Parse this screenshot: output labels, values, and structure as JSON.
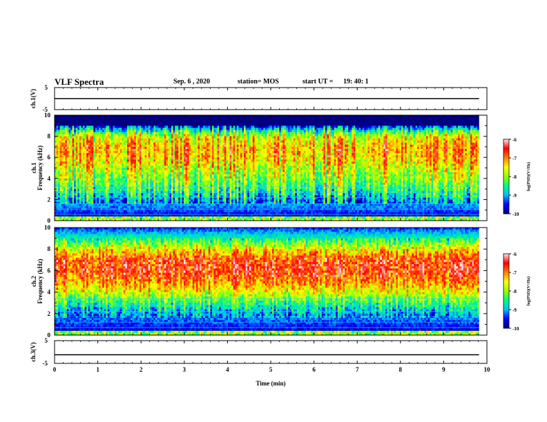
{
  "header": {
    "title": "VLF Spectra",
    "date": "Sep. 6 , 2020",
    "station": "station= MOS",
    "start_label": "start UT =",
    "start_time": "19: 40: 1"
  },
  "time_axis": {
    "label": "Time (min)",
    "range": [
      0,
      10
    ],
    "ticks": [
      "0",
      "1",
      "2",
      "3",
      "4",
      "5",
      "6",
      "7",
      "8",
      "9",
      "10"
    ]
  },
  "panels": {
    "ch1_voltage": {
      "ylabel": "ch.1(V)",
      "yrange": [
        -5,
        5
      ],
      "ytick_labels": [
        "5",
        "-5"
      ],
      "trace_level_V": 0
    },
    "ch1_spectrogram": {
      "ylabel_line1": "ch.1",
      "ylabel_line2": "Frequency (kHz)",
      "yrange": [
        0,
        10
      ],
      "ytick_labels": [
        "0",
        "2",
        "4",
        "6",
        "8",
        "10"
      ]
    },
    "ch2_spectrogram": {
      "ylabel_line1": "ch.2",
      "ylabel_line2": "Frequency (kHz)",
      "yrange": [
        0,
        10
      ],
      "ytick_labels": [
        "0",
        "2",
        "4",
        "6",
        "8",
        "10"
      ]
    },
    "ch3_voltage": {
      "ylabel": "ch.3(V)",
      "yrange": [
        -5,
        5
      ],
      "ytick_labels": [
        "5",
        "-5"
      ],
      "trace_level_V": -1.2
    }
  },
  "colorbars": [
    {
      "label": "log(PSD)(V²/Hz)",
      "range": [
        -10,
        -6
      ],
      "tick_labels": [
        "-6",
        "-7",
        "-8",
        "-9",
        "-10"
      ]
    },
    {
      "label": "log(PSD)(V²/Hz)",
      "range": [
        -10,
        -6
      ],
      "tick_labels": [
        "-6",
        "-7",
        "-8",
        "-9",
        "-10"
      ]
    }
  ],
  "colors": {
    "psd_colormap": [
      "#000080",
      "#0000ff",
      "#00bfff",
      "#00ff80",
      "#9aff00",
      "#ffff00",
      "#ff8000",
      "#ff0000",
      "#ffe6e6"
    ],
    "axis": "#000000"
  },
  "chart_data": [
    {
      "type": "line",
      "title": "",
      "xlabel": "",
      "ylabel": "ch.1(V)",
      "xlim": [
        0,
        10
      ],
      "ylim": [
        -5,
        5
      ],
      "series": [
        {
          "x": [
            0,
            9.82
          ],
          "y": [
            0,
            0
          ]
        }
      ]
    },
    {
      "type": "heatmap",
      "title": "",
      "ylabel": "Frequency (kHz)",
      "xlim": [
        0,
        10
      ],
      "ylim": [
        0,
        10
      ],
      "data_end_min": 9.82,
      "colorbar_range": [
        -10,
        -6
      ],
      "approx_freq_profile": {
        "freq_khz": [
          0,
          0.5,
          1,
          2,
          3,
          4,
          5,
          6,
          7,
          8,
          8.6,
          9.2,
          10
        ],
        "log_psd": [
          -8.2,
          -9.6,
          -9.3,
          -8.9,
          -8.3,
          -7.9,
          -7.6,
          -7.2,
          -7.1,
          -7.6,
          -8.6,
          -10,
          -10
        ]
      }
    },
    {
      "type": "heatmap",
      "title": "",
      "ylabel": "Frequency (kHz)",
      "xlim": [
        0,
        10
      ],
      "ylim": [
        0,
        10
      ],
      "data_end_min": 9.82,
      "colorbar_range": [
        -10,
        -6
      ],
      "approx_freq_profile": {
        "freq_khz": [
          0,
          0.5,
          1,
          2,
          3,
          4,
          5,
          6,
          7,
          8,
          9,
          10
        ],
        "log_psd": [
          -8.0,
          -9.6,
          -9.4,
          -9.0,
          -8.4,
          -7.6,
          -7.0,
          -6.6,
          -6.7,
          -7.5,
          -8.6,
          -9.4
        ]
      }
    },
    {
      "type": "line",
      "title": "",
      "xlabel": "Time (min)",
      "ylabel": "ch.3(V)",
      "xlim": [
        0,
        10
      ],
      "ylim": [
        -5,
        5
      ],
      "series": [
        {
          "x": [
            0,
            9.82
          ],
          "y": [
            -1.2,
            -1.2
          ]
        }
      ]
    }
  ]
}
